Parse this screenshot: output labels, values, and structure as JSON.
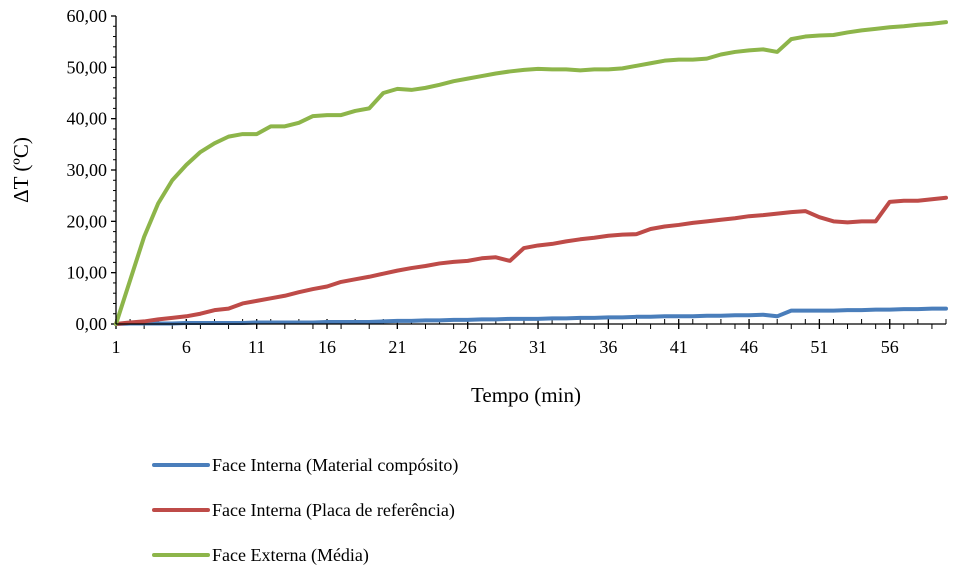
{
  "chart_data": {
    "type": "line",
    "title": "",
    "xlabel": "Tempo (min)",
    "ylabel": "ΔT (ºC)",
    "xlim": [
      1,
      60
    ],
    "ylim": [
      0,
      60
    ],
    "y_ticks": [
      0,
      10,
      20,
      30,
      40,
      50,
      60
    ],
    "y_tick_labels": [
      "0,00",
      "10,00",
      "20,00",
      "30,00",
      "40,00",
      "50,00",
      "60,00"
    ],
    "x_ticks": [
      1,
      6,
      11,
      16,
      21,
      26,
      31,
      36,
      41,
      46,
      51,
      56
    ],
    "x_tick_labels": [
      "1",
      "6",
      "11",
      "16",
      "21",
      "26",
      "31",
      "36",
      "41",
      "46",
      "51",
      "56"
    ],
    "x": [
      1,
      2,
      3,
      4,
      5,
      6,
      7,
      8,
      9,
      10,
      11,
      12,
      13,
      14,
      15,
      16,
      17,
      18,
      19,
      20,
      21,
      22,
      23,
      24,
      25,
      26,
      27,
      28,
      29,
      30,
      31,
      32,
      33,
      34,
      35,
      36,
      37,
      38,
      39,
      40,
      41,
      42,
      43,
      44,
      45,
      46,
      47,
      48,
      49,
      50,
      51,
      52,
      53,
      54,
      55,
      56,
      57,
      58,
      59,
      60
    ],
    "series": [
      {
        "name": "Face Interna (Material compósito)",
        "color": "#4a7ebb",
        "values": [
          0,
          0.1,
          0.1,
          0.1,
          0.1,
          0.2,
          0.2,
          0.2,
          0.2,
          0.2,
          0.3,
          0.3,
          0.3,
          0.3,
          0.3,
          0.4,
          0.4,
          0.4,
          0.4,
          0.5,
          0.6,
          0.6,
          0.7,
          0.7,
          0.8,
          0.8,
          0.9,
          0.9,
          1.0,
          1.0,
          1.0,
          1.1,
          1.1,
          1.2,
          1.2,
          1.3,
          1.3,
          1.4,
          1.4,
          1.5,
          1.5,
          1.5,
          1.6,
          1.6,
          1.7,
          1.7,
          1.8,
          1.5,
          2.6,
          2.6,
          2.6,
          2.6,
          2.7,
          2.7,
          2.8,
          2.8,
          2.9,
          2.9,
          3.0,
          3.0
        ]
      },
      {
        "name": "Face Interna (Placa de referência)",
        "color": "#be4b48",
        "values": [
          0,
          0.3,
          0.5,
          0.9,
          1.2,
          1.5,
          2.0,
          2.7,
          3.0,
          4.0,
          4.5,
          5.0,
          5.5,
          6.2,
          6.8,
          7.3,
          8.2,
          8.7,
          9.2,
          9.8,
          10.4,
          10.9,
          11.3,
          11.8,
          12.1,
          12.3,
          12.8,
          13.0,
          12.3,
          14.8,
          15.3,
          15.6,
          16.1,
          16.5,
          16.8,
          17.2,
          17.4,
          17.5,
          18.5,
          19.0,
          19.3,
          19.7,
          20.0,
          20.3,
          20.6,
          21.0,
          21.2,
          21.5,
          21.8,
          22.0,
          20.8,
          20.0,
          19.8,
          20.0,
          20.0,
          23.8,
          24.0,
          24.0,
          24.3,
          24.6
        ]
      },
      {
        "name": "Face Externa (Média)",
        "color": "#8db54a",
        "values": [
          0,
          8.5,
          17.0,
          23.5,
          28.0,
          31.0,
          33.5,
          35.2,
          36.5,
          37.0,
          37.0,
          38.5,
          38.5,
          39.2,
          40.5,
          40.7,
          40.7,
          41.5,
          42.0,
          45.0,
          45.8,
          45.6,
          46.0,
          46.6,
          47.3,
          47.8,
          48.3,
          48.8,
          49.2,
          49.5,
          49.7,
          49.6,
          49.6,
          49.4,
          49.6,
          49.6,
          49.8,
          50.3,
          50.8,
          51.3,
          51.5,
          51.5,
          51.7,
          52.5,
          53.0,
          53.3,
          53.5,
          53.0,
          55.5,
          56.0,
          56.2,
          56.3,
          56.8,
          57.2,
          57.5,
          57.8,
          58.0,
          58.3,
          58.5,
          58.8
        ]
      }
    ],
    "legend_position": "bottom-left"
  }
}
